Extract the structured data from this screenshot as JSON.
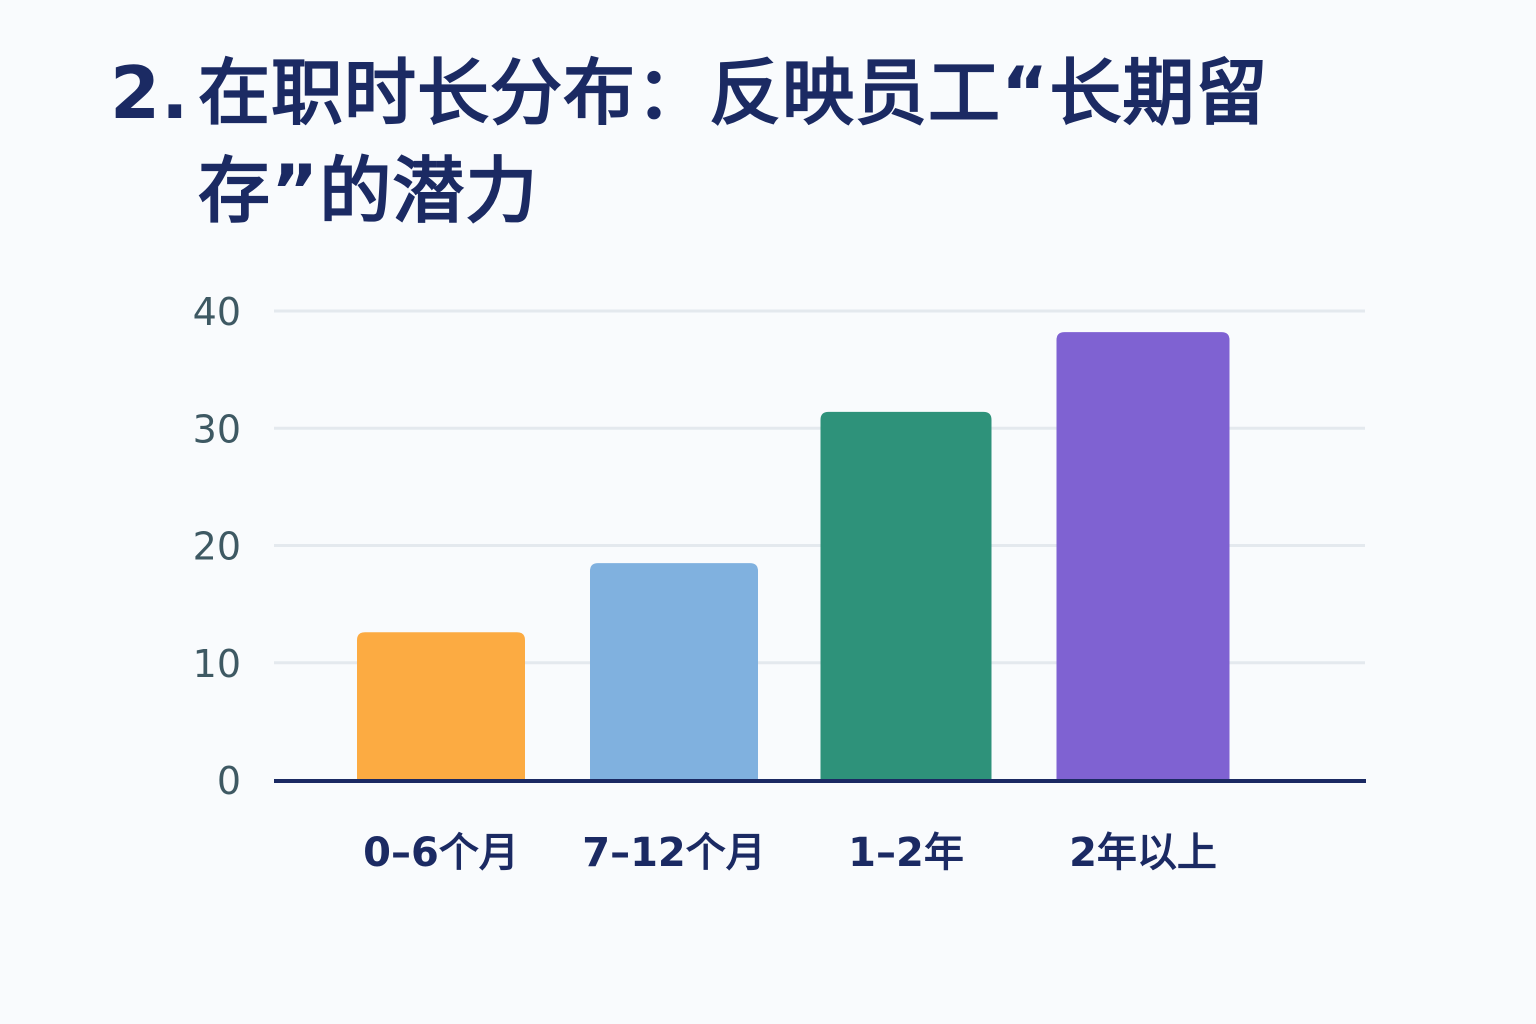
{
  "title": {
    "number": "2.",
    "text": "在职时长分布：反映员工“长期留存”的潜力"
  },
  "chart_data": {
    "type": "bar",
    "categories": [
      "0–6个月",
      "7–12个月",
      "1–2年",
      "2年以上"
    ],
    "values": [
      12.6,
      18.5,
      31.4,
      38.2
    ],
    "colors": [
      "#fcab42",
      "#80b1df",
      "#2e927a",
      "#7f62d2"
    ],
    "ylim": [
      0,
      40
    ],
    "yticks": [
      0,
      10,
      20,
      30,
      40
    ],
    "ytick_labels": [
      "0",
      "10",
      "20",
      "30",
      "40"
    ],
    "grid": true,
    "legend": "none",
    "axis_color": "#1b2a63",
    "grid_color": "#e4e9ee"
  }
}
